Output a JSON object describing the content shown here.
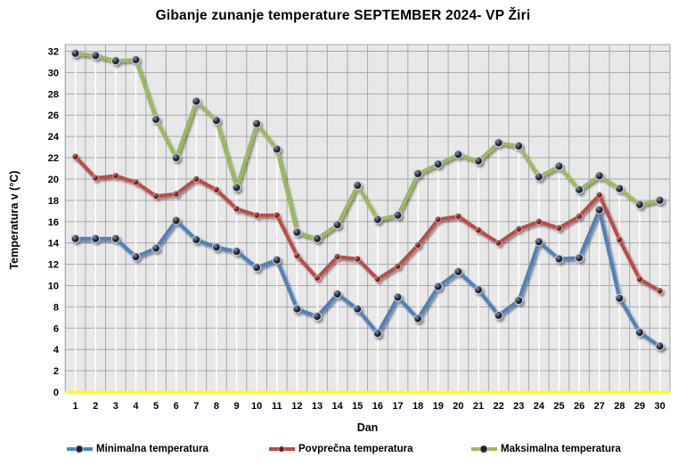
{
  "chart_data": {
    "type": "line",
    "title": "Gibanje zunanje temperature SEPTEMBER 2024- VP Žiri",
    "xlabel": "Dan",
    "ylabel": "Temperatura v (°C)",
    "x": [
      1,
      2,
      3,
      4,
      5,
      6,
      7,
      8,
      9,
      10,
      11,
      12,
      13,
      14,
      15,
      16,
      17,
      18,
      19,
      20,
      21,
      22,
      23,
      24,
      25,
      26,
      27,
      28,
      29,
      30
    ],
    "ylim": [
      0,
      32
    ],
    "ytick_step": 2,
    "grid": true,
    "legend_position": "bottom",
    "plot_bg": "#E8E8E8",
    "grid_color": "#A8A8A8",
    "zero_line_color": "#FFFF00",
    "drop_line_color": "#FFFFFF",
    "series": [
      {
        "name": "Minimalna temperatura",
        "color": "#4F81BD",
        "marker_color": "#23222C",
        "values": [
          14.4,
          14.4,
          14.4,
          12.7,
          13.5,
          16.1,
          14.3,
          13.6,
          13.2,
          11.7,
          12.4,
          7.8,
          7.1,
          9.2,
          7.8,
          5.5,
          8.9,
          6.9,
          9.9,
          11.3,
          9.6,
          7.2,
          8.6,
          14.1,
          12.5,
          12.6,
          17.1,
          8.8,
          5.6,
          4.3
        ]
      },
      {
        "name": "Povprečna temperatura",
        "color": "#BE4B48",
        "marker_color": "#6E1B18",
        "values": [
          22.1,
          20.1,
          20.3,
          19.7,
          18.4,
          18.6,
          20.0,
          19.0,
          17.2,
          16.6,
          16.6,
          12.8,
          10.7,
          12.7,
          12.5,
          10.6,
          11.8,
          13.8,
          16.2,
          16.5,
          15.2,
          14.0,
          15.3,
          16.0,
          15.4,
          16.5,
          18.5,
          14.3,
          10.6,
          9.5
        ]
      },
      {
        "name": "Maksimalna temperatura",
        "color": "#9BBB59",
        "marker_color": "#23222C",
        "values": [
          31.8,
          31.6,
          31.1,
          31.2,
          25.6,
          22.0,
          27.3,
          25.5,
          19.2,
          25.2,
          22.8,
          15.0,
          14.4,
          15.7,
          19.4,
          16.2,
          16.6,
          20.5,
          21.4,
          22.3,
          21.7,
          23.4,
          23.1,
          20.2,
          21.2,
          19.0,
          20.3,
          19.1,
          17.6,
          18.0
        ]
      }
    ]
  }
}
